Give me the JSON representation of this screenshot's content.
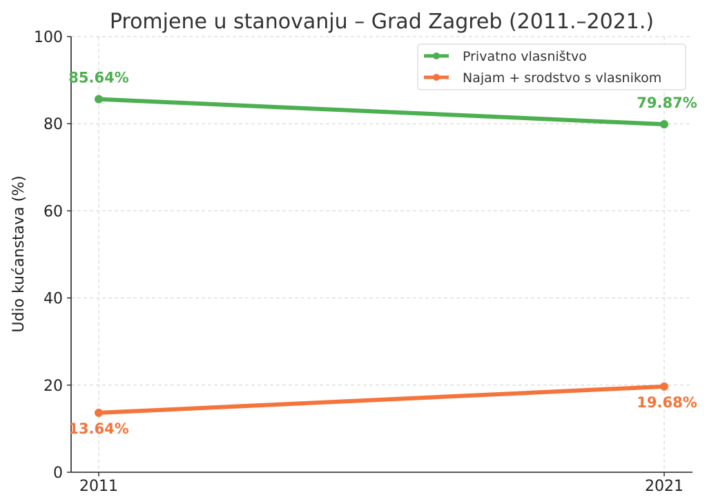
{
  "chart_data": {
    "type": "line",
    "title": "Promjene u stanovanju – Grad Zagreb (2011.–2021.)",
    "xlabel": "",
    "ylabel": "Udio kućanstava (%)",
    "categories": [
      "2011",
      "2021"
    ],
    "ylim": [
      0,
      100
    ],
    "yticks": [
      "0",
      "20",
      "40",
      "60",
      "80",
      "100"
    ],
    "grid": true,
    "legend_position": "top-right",
    "series": [
      {
        "name": "Privatno vlasništvo",
        "values": [
          85.64,
          79.87
        ],
        "labels": [
          "85.64%",
          "79.87%"
        ],
        "color": "#4caf50"
      },
      {
        "name": "Najam + srodstvo s vlasnikom",
        "values": [
          13.64,
          19.68
        ],
        "labels": [
          "13.64%",
          "19.68%"
        ],
        "color": "#f4743b"
      }
    ]
  }
}
